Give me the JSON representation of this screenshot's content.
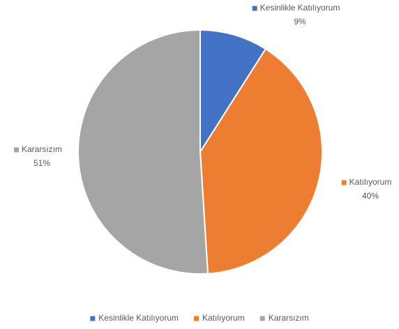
{
  "chart_data": {
    "type": "pie",
    "categories": [
      "Kesinlikle Katılıyorum",
      "Katılıyorum",
      "Kararsızım"
    ],
    "values": [
      9,
      40,
      51
    ],
    "value_labels": [
      "9%",
      "40%",
      "51%"
    ],
    "colors": [
      "#4472c4",
      "#ed7d31",
      "#a5a5a5"
    ],
    "legend": "bottom"
  }
}
